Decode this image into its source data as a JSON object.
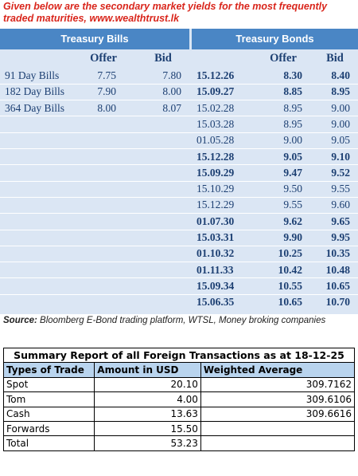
{
  "intro": "Given below are the secondary market yields for the most frequently traded maturities, www.wealthtrust.lk",
  "yields": {
    "bills_header": "Treasury Bills",
    "bonds_header": "Treasury Bonds",
    "offer_label": "Offer",
    "bid_label": "Bid",
    "rows": [
      {
        "bill": "91 Day Bills",
        "bill_offer": "7.75",
        "bill_bid": "7.80",
        "bond": "15.12.26",
        "bond_offer": "8.30",
        "bond_bid": "8.40",
        "bold": true
      },
      {
        "bill": "182 Day Bills",
        "bill_offer": "7.90",
        "bill_bid": "8.00",
        "bond": "15.09.27",
        "bond_offer": "8.85",
        "bond_bid": "8.95",
        "bold": true
      },
      {
        "bill": "364 Day Bills",
        "bill_offer": "8.00",
        "bill_bid": "8.07",
        "bond": "15.02.28",
        "bond_offer": "8.95",
        "bond_bid": "9.00",
        "bold": false
      },
      {
        "bill": "",
        "bill_offer": "",
        "bill_bid": "",
        "bond": "15.03.28",
        "bond_offer": "8.95",
        "bond_bid": "9.00",
        "bold": false
      },
      {
        "bill": "",
        "bill_offer": "",
        "bill_bid": "",
        "bond": "01.05.28",
        "bond_offer": "9.00",
        "bond_bid": "9.05",
        "bold": false
      },
      {
        "bill": "",
        "bill_offer": "",
        "bill_bid": "",
        "bond": "15.12.28",
        "bond_offer": "9.05",
        "bond_bid": "9.10",
        "bold": true
      },
      {
        "bill": "",
        "bill_offer": "",
        "bill_bid": "",
        "bond": "15.09.29",
        "bond_offer": "9.47",
        "bond_bid": "9.52",
        "bold": true
      },
      {
        "bill": "",
        "bill_offer": "",
        "bill_bid": "",
        "bond": "15.10.29",
        "bond_offer": "9.50",
        "bond_bid": "9.55",
        "bold": false
      },
      {
        "bill": "",
        "bill_offer": "",
        "bill_bid": "",
        "bond": "15.12.29",
        "bond_offer": "9.55",
        "bond_bid": "9.60",
        "bold": false
      },
      {
        "bill": "",
        "bill_offer": "",
        "bill_bid": "",
        "bond": "01.07.30",
        "bond_offer": "9.62",
        "bond_bid": "9.65",
        "bold": true
      },
      {
        "bill": "",
        "bill_offer": "",
        "bill_bid": "",
        "bond": "15.03.31",
        "bond_offer": "9.90",
        "bond_bid": "9.95",
        "bold": true
      },
      {
        "bill": "",
        "bill_offer": "",
        "bill_bid": "",
        "bond": "01.10.32",
        "bond_offer": "10.25",
        "bond_bid": "10.35",
        "bold": true
      },
      {
        "bill": "",
        "bill_offer": "",
        "bill_bid": "",
        "bond": "01.11.33",
        "bond_offer": "10.42",
        "bond_bid": "10.48",
        "bold": true
      },
      {
        "bill": "",
        "bill_offer": "",
        "bill_bid": "",
        "bond": "15.09.34",
        "bond_offer": "10.55",
        "bond_bid": "10.65",
        "bold": true
      },
      {
        "bill": "",
        "bill_offer": "",
        "bill_bid": "",
        "bond": "15.06.35",
        "bond_offer": "10.65",
        "bond_bid": "10.70",
        "bold": true
      }
    ]
  },
  "source": {
    "label": "Source:",
    "text": " Bloomberg E-Bond trading platform, WTSL, Money broking companies"
  },
  "summary": {
    "title": "Summary Report of all Foreign Transactions as at 18-12-25",
    "headers": [
      "Types of Trade",
      "Amount in USD",
      "Weighted Average"
    ],
    "rows": [
      {
        "type": "Spot",
        "amount": "20.10",
        "avg": "309.7162"
      },
      {
        "type": "Tom",
        "amount": "4.00",
        "avg": "309.6106"
      },
      {
        "type": "Cash",
        "amount": "13.63",
        "avg": "309.6616"
      },
      {
        "type": "Forwards",
        "amount": "15.50",
        "avg": ""
      },
      {
        "type": "Total",
        "amount": "53.23",
        "avg": ""
      }
    ]
  }
}
